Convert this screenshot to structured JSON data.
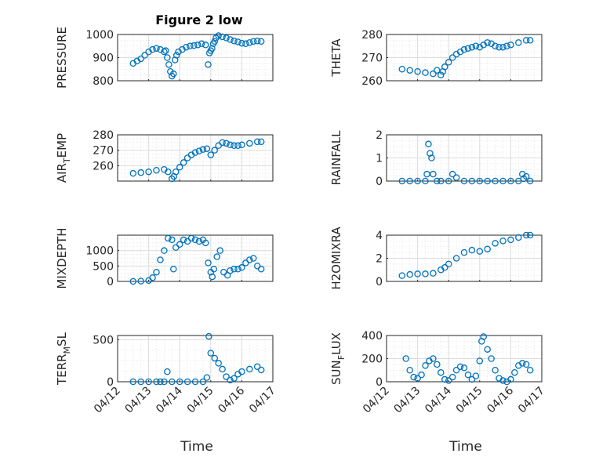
{
  "figure": {
    "title": "Figure 2 low",
    "xlabel": "Time"
  },
  "colors": {
    "marker": "#0072bd",
    "axis": "#262626",
    "grid": "#dcdcdc"
  },
  "chart_data": [
    {
      "type": "scatter",
      "ylabel": "PRESSURE",
      "xlim": [
        "04/12",
        "04/17"
      ],
      "ylim": [
        800,
        1000
      ],
      "yticks": [
        800,
        900,
        1000
      ],
      "xticks": [
        "04/12",
        "04/13",
        "04/14",
        "04/15",
        "04/16",
        "04/17"
      ],
      "show_xticklabels": false,
      "grid": true,
      "x": [
        "04/12 12:00",
        "04/12 15:00",
        "04/12 18:00",
        "04/12 21:00",
        "04/13 00:00",
        "04/13 03:00",
        "04/13 06:00",
        "04/13 09:00",
        "04/13 12:00",
        "04/13 13:12",
        "04/13 14:24",
        "04/13 15:36",
        "04/13 16:48",
        "04/13 18:00",
        "04/13 19:12",
        "04/13 20:24",
        "04/13 21:36",
        "04/13 23:00",
        "04/14 02:00",
        "04/14 05:00",
        "04/14 08:00",
        "04/14 11:00",
        "04/14 14:00",
        "04/14 17:00",
        "04/14 20:00",
        "04/14 22:00",
        "04/14 23:00",
        "04/15 00:00",
        "04/15 01:00",
        "04/15 02:00",
        "04/15 03:00",
        "04/15 04:00",
        "04/15 06:00",
        "04/15 09:00",
        "04/15 12:00",
        "04/15 15:00",
        "04/15 18:00",
        "04/15 21:00",
        "04/16 00:00",
        "04/16 03:00",
        "04/16 06:00",
        "04/16 09:00",
        "04/16 12:00",
        "04/16 15:00"
      ],
      "y": [
        875,
        885,
        895,
        910,
        925,
        935,
        940,
        935,
        925,
        930,
        900,
        870,
        840,
        820,
        830,
        890,
        910,
        925,
        935,
        945,
        950,
        952,
        955,
        960,
        955,
        870,
        920,
        930,
        940,
        960,
        970,
        985,
        995,
        990,
        985,
        978,
        972,
        968,
        962,
        960,
        965,
        970,
        972,
        970
      ]
    },
    {
      "type": "scatter",
      "ylabel": "THETA",
      "xlim": [
        "04/12",
        "04/17"
      ],
      "ylim": [
        260,
        280
      ],
      "yticks": [
        260,
        270,
        280
      ],
      "xticks": [
        "04/12",
        "04/13",
        "04/14",
        "04/15",
        "04/16",
        "04/17"
      ],
      "show_xticklabels": false,
      "grid": true,
      "x": [
        "04/12 12:00",
        "04/12 18:00",
        "04/13 00:00",
        "04/13 06:00",
        "04/13 12:00",
        "04/13 15:00",
        "04/13 18:00",
        "04/13 19:30",
        "04/13 21:00",
        "04/14 00:00",
        "04/14 03:00",
        "04/14 06:00",
        "04/14 09:00",
        "04/14 12:00",
        "04/14 15:00",
        "04/14 18:00",
        "04/14 21:00",
        "04/15 00:00",
        "04/15 03:00",
        "04/15 06:00",
        "04/15 09:00",
        "04/15 12:00",
        "04/15 15:00",
        "04/15 18:00",
        "04/15 21:00",
        "04/16 00:00",
        "04/16 06:00",
        "04/16 12:00",
        "04/16 15:00"
      ],
      "y": [
        265,
        264.5,
        264,
        263.5,
        263,
        264.5,
        262.5,
        264,
        266,
        268,
        270,
        271.5,
        272.5,
        273.5,
        274,
        274.5,
        275,
        274.5,
        275.5,
        276.5,
        276,
        275,
        274.5,
        274.5,
        275,
        275.5,
        276.5,
        277.5,
        277.5
      ]
    },
    {
      "type": "scatter",
      "ylabel": "AIR_TEMP",
      "xlim": [
        "04/12",
        "04/17"
      ],
      "ylim": [
        250,
        280
      ],
      "yticks": [
        260,
        270,
        280
      ],
      "xticks": [
        "04/12",
        "04/13",
        "04/14",
        "04/15",
        "04/16",
        "04/17"
      ],
      "show_xticklabels": false,
      "grid": true,
      "x": [
        "04/12 12:00",
        "04/12 18:00",
        "04/13 00:00",
        "04/13 06:00",
        "04/13 12:00",
        "04/13 15:00",
        "04/13 18:00",
        "04/13 19:30",
        "04/13 21:00",
        "04/14 00:00",
        "04/14 03:00",
        "04/14 06:00",
        "04/14 09:00",
        "04/14 12:00",
        "04/14 15:00",
        "04/14 18:00",
        "04/14 21:00",
        "04/15 00:00",
        "04/15 03:00",
        "04/15 06:00",
        "04/15 09:00",
        "04/15 12:00",
        "04/15 15:00",
        "04/15 18:00",
        "04/15 21:00",
        "04/16 00:00",
        "04/16 06:00",
        "04/16 12:00",
        "04/16 15:00"
      ],
      "y": [
        255,
        255.5,
        256,
        257,
        257.5,
        256,
        251.5,
        253,
        256,
        259,
        262,
        265,
        267,
        268.5,
        269.5,
        270.5,
        271,
        267,
        270,
        273,
        275,
        274.5,
        273.5,
        273,
        273,
        273.5,
        274.5,
        275.5,
        275.5
      ]
    },
    {
      "type": "scatter",
      "ylabel": "RAINFALL",
      "xlim": [
        "04/12",
        "04/17"
      ],
      "ylim": [
        0,
        2
      ],
      "yticks": [
        0,
        1,
        2
      ],
      "xticks": [
        "04/12",
        "04/13",
        "04/14",
        "04/15",
        "04/16",
        "04/17"
      ],
      "show_xticklabels": false,
      "grid": true,
      "x": [
        "04/12 12:00",
        "04/12 18:00",
        "04/13 00:00",
        "04/13 06:00",
        "04/13 07:12",
        "04/13 08:24",
        "04/13 09:36",
        "04/13 10:48",
        "04/13 12:00",
        "04/13 15:00",
        "04/13 18:00",
        "04/14 00:00",
        "04/14 03:00",
        "04/14 06:00",
        "04/14 12:00",
        "04/14 18:00",
        "04/15 00:00",
        "04/15 06:00",
        "04/15 12:00",
        "04/15 18:00",
        "04/16 00:00",
        "04/16 06:00",
        "04/16 09:00",
        "04/16 10:00",
        "04/16 12:00",
        "04/16 15:00"
      ],
      "y": [
        0,
        0,
        0,
        0,
        0.3,
        1.6,
        1.2,
        1.0,
        0.3,
        0,
        0,
        0,
        0.3,
        0.15,
        0,
        0,
        0,
        0,
        0,
        0,
        0,
        0,
        0.3,
        0.1,
        0.2,
        0
      ]
    },
    {
      "type": "scatter",
      "ylabel": "MIXDEPTH",
      "xlim": [
        "04/12",
        "04/17"
      ],
      "ylim": [
        0,
        1500
      ],
      "yticks": [
        0,
        500,
        1000
      ],
      "xticks": [
        "04/12",
        "04/13",
        "04/14",
        "04/15",
        "04/16",
        "04/17"
      ],
      "show_xticklabels": false,
      "grid": true,
      "x": [
        "04/12 12:00",
        "04/12 18:00",
        "04/13 00:00",
        "04/13 03:00",
        "04/13 06:00",
        "04/13 09:00",
        "04/13 12:00",
        "04/13 15:00",
        "04/13 18:00",
        "04/13 19:12",
        "04/13 21:00",
        "04/14 00:00",
        "04/14 03:00",
        "04/14 06:00",
        "04/14 09:00",
        "04/14 12:00",
        "04/14 15:00",
        "04/14 18:00",
        "04/14 20:00",
        "04/14 22:00",
        "04/15 00:00",
        "04/15 01:12",
        "04/15 02:24",
        "04/15 04:48",
        "04/15 07:12",
        "04/15 10:00",
        "04/15 13:00",
        "04/15 15:00",
        "04/15 18:00",
        "04/15 21:00",
        "04/16 00:00",
        "04/16 03:00",
        "04/16 06:00",
        "04/16 09:00",
        "04/16 12:00",
        "04/16 15:00"
      ],
      "y": [
        0,
        10,
        30,
        120,
        300,
        700,
        1000,
        1400,
        1350,
        400,
        1100,
        1200,
        1350,
        1300,
        1400,
        1350,
        1300,
        1350,
        1250,
        600,
        300,
        150,
        400,
        800,
        1000,
        300,
        200,
        350,
        400,
        400,
        450,
        600,
        700,
        750,
        500,
        400
      ]
    },
    {
      "type": "scatter",
      "ylabel": "H2OMIXRA",
      "xlim": [
        "04/12",
        "04/17"
      ],
      "ylim": [
        0,
        4
      ],
      "yticks": [
        0,
        2,
        4
      ],
      "xticks": [
        "04/12",
        "04/13",
        "04/14",
        "04/15",
        "04/16",
        "04/17"
      ],
      "show_xticklabels": false,
      "grid": true,
      "x": [
        "04/12 12:00",
        "04/12 18:00",
        "04/13 00:00",
        "04/13 06:00",
        "04/13 12:00",
        "04/13 18:00",
        "04/13 21:00",
        "04/14 00:00",
        "04/14 06:00",
        "04/14 12:00",
        "04/14 18:00",
        "04/15 00:00",
        "04/15 06:00",
        "04/15 12:00",
        "04/15 18:00",
        "04/16 00:00",
        "04/16 06:00",
        "04/16 12:00",
        "04/16 15:00"
      ],
      "y": [
        0.5,
        0.6,
        0.65,
        0.65,
        0.7,
        1.0,
        1.2,
        1.5,
        2.0,
        2.5,
        2.7,
        2.6,
        2.8,
        3.3,
        3.5,
        3.6,
        3.8,
        4.0,
        4.0
      ]
    },
    {
      "type": "scatter",
      "ylabel": "TERR_MSL",
      "xlim": [
        "04/12",
        "04/17"
      ],
      "ylim": [
        0,
        550
      ],
      "yticks": [
        0,
        500
      ],
      "xticks": [
        "04/12",
        "04/13",
        "04/14",
        "04/15",
        "04/16",
        "04/17"
      ],
      "show_xticklabels": true,
      "grid": true,
      "x": [
        "04/12 12:00",
        "04/12 18:00",
        "04/13 00:00",
        "04/13 06:00",
        "04/13 09:00",
        "04/13 12:00",
        "04/13 14:24",
        "04/13 18:00",
        "04/14 00:00",
        "04/14 06:00",
        "04/14 12:00",
        "04/14 18:00",
        "04/14 21:00",
        "04/14 22:30",
        "04/15 00:00",
        "04/15 03:00",
        "04/15 06:00",
        "04/15 09:00",
        "04/15 12:00",
        "04/15 15:00",
        "04/15 18:00",
        "04/15 21:00",
        "04/16 00:00",
        "04/16 06:00",
        "04/16 12:00",
        "04/16 15:00"
      ],
      "y": [
        0,
        0,
        0,
        0,
        0,
        0,
        120,
        0,
        0,
        0,
        0,
        0,
        50,
        540,
        340,
        280,
        220,
        150,
        60,
        20,
        40,
        90,
        120,
        150,
        180,
        140
      ]
    },
    {
      "type": "scatter",
      "ylabel": "SUN_FLUX",
      "xlim": [
        "04/12",
        "04/17"
      ],
      "ylim": [
        0,
        400
      ],
      "yticks": [
        0,
        200,
        400
      ],
      "xticks": [
        "04/12",
        "04/13",
        "04/14",
        "04/15",
        "04/16",
        "04/17"
      ],
      "show_xticklabels": true,
      "grid": true,
      "x": [
        "04/12 15:00",
        "04/12 18:00",
        "04/12 21:00",
        "04/13 00:00",
        "04/13 03:00",
        "04/13 06:00",
        "04/13 09:00",
        "04/13 12:00",
        "04/13 15:00",
        "04/13 18:00",
        "04/13 21:00",
        "04/14 00:00",
        "04/14 03:00",
        "04/14 06:00",
        "04/14 09:00",
        "04/14 12:00",
        "04/14 15:00",
        "04/14 18:00",
        "04/14 21:00",
        "04/15 00:00",
        "04/15 01:30",
        "04/15 03:00",
        "04/15 06:00",
        "04/15 09:00",
        "04/15 12:00",
        "04/15 15:00",
        "04/15 18:00",
        "04/15 21:00",
        "04/16 00:00",
        "04/16 03:00",
        "04/16 06:00",
        "04/16 09:00",
        "04/16 12:00",
        "04/16 15:00"
      ],
      "y": [
        200,
        100,
        40,
        30,
        60,
        140,
        180,
        200,
        150,
        80,
        20,
        10,
        40,
        100,
        130,
        120,
        60,
        20,
        50,
        180,
        350,
        390,
        280,
        200,
        100,
        30,
        10,
        0,
        20,
        80,
        140,
        160,
        150,
        100
      ]
    }
  ]
}
